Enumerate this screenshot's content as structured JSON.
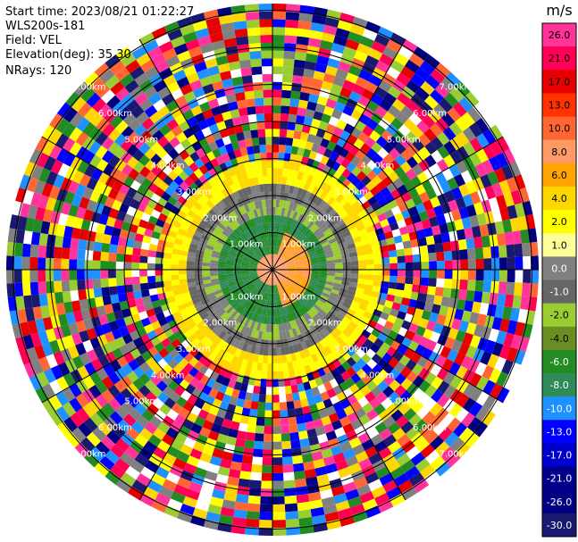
{
  "header": {
    "start_time": "Start time: 2023/08/21 01:22:27",
    "instrument": "WLS200s-181",
    "field": "Field: VEL",
    "elevation": "Elevation(deg): 35.30",
    "nrays": "NRays: 120"
  },
  "chart_data": {
    "type": "heatmap",
    "projection": "polar-ppi",
    "field": "VEL",
    "elevation_deg": 35.3,
    "nrays": 120,
    "range_ring_labels": [
      "1.00km",
      "2.00km",
      "3.00km",
      "4.00km",
      "5.00km",
      "6.00km",
      "7.00km"
    ],
    "colorbar": {
      "unit": "m/s",
      "tick_labels": [
        "26.0",
        "21.0",
        "17.0",
        "13.0",
        "10.0",
        "8.0",
        "6.0",
        "4.0",
        "2.0",
        "1.0",
        "0.0",
        "-1.0",
        "-2.0",
        "-4.0",
        "-6.0",
        "-8.0",
        "-10.0",
        "-13.0",
        "-17.0",
        "-21.0",
        "-26.0",
        "-30.0"
      ],
      "colors": [
        "#ff3399",
        "#ff0055",
        "#e60000",
        "#ff3300",
        "#ff6633",
        "#ff9966",
        "#ffa500",
        "#ffd700",
        "#ffff00",
        "#ffff99",
        "#808080",
        "#666666",
        "#9acd32",
        "#6b8e23",
        "#228b22",
        "#2e8b57",
        "#1e90ff",
        "#0000ff",
        "#0000cd",
        "#00008b",
        "#000080",
        "#191970"
      ]
    }
  }
}
